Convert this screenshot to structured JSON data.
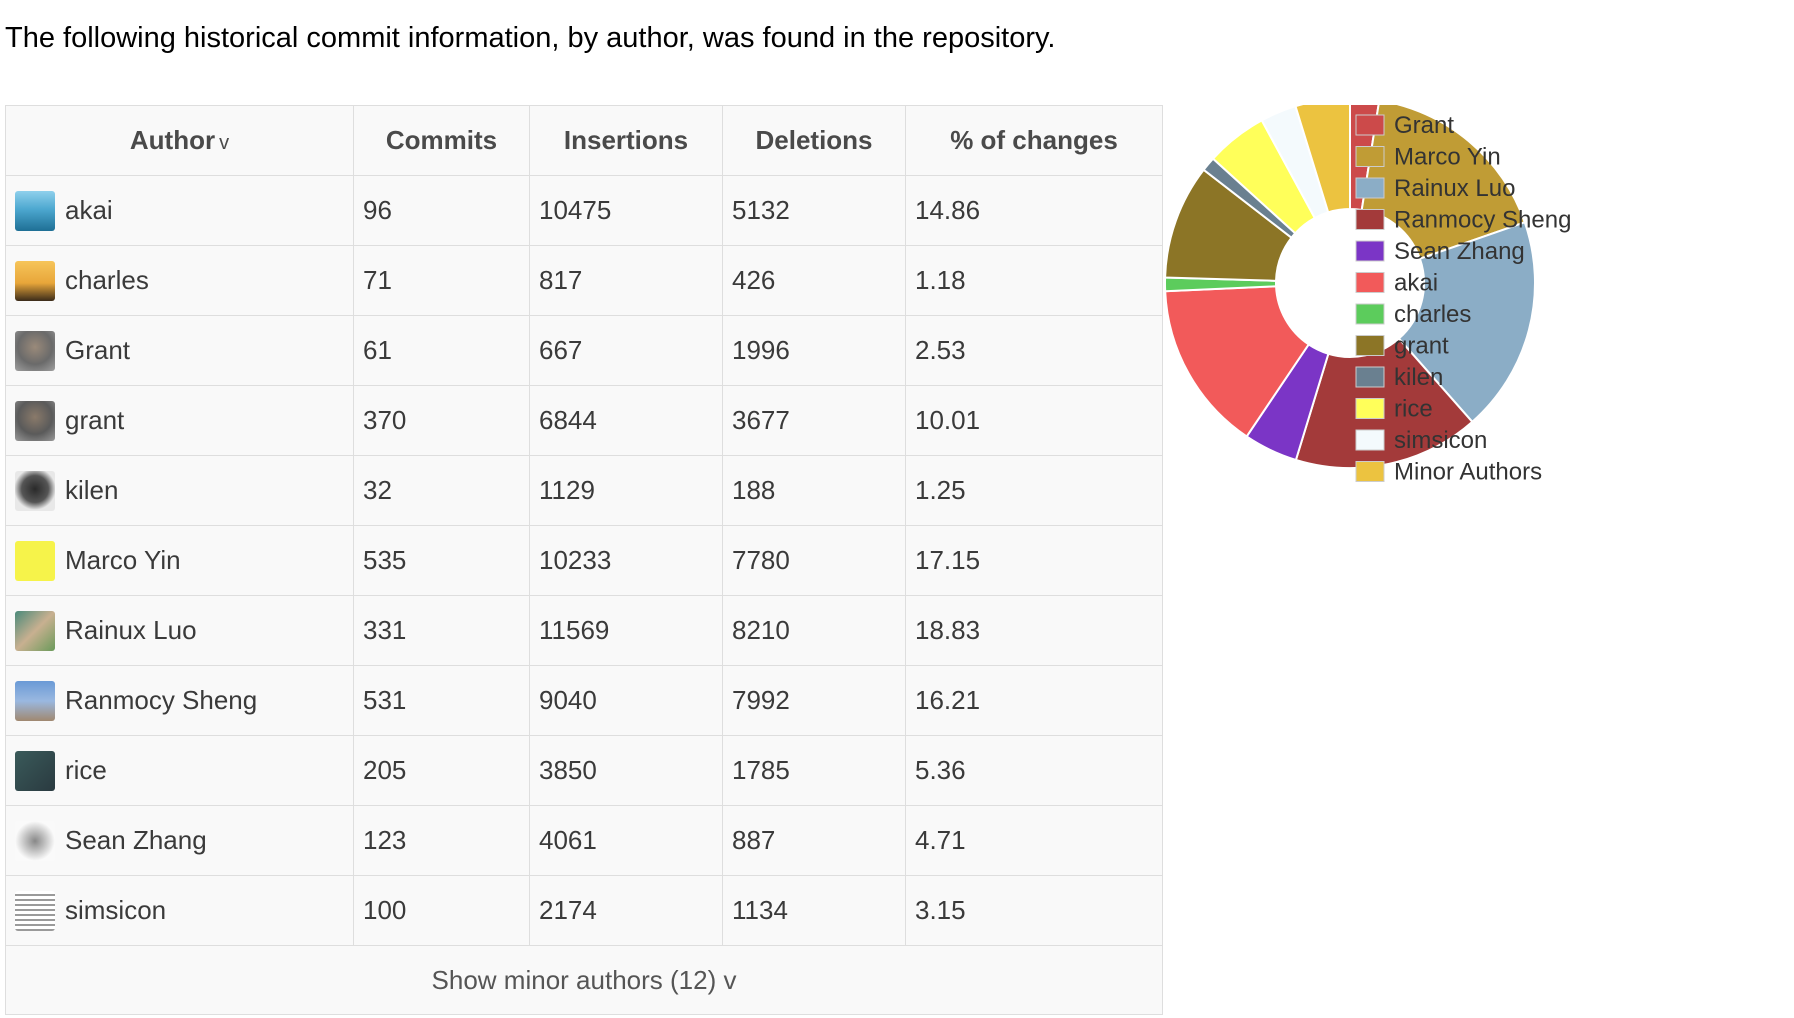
{
  "intro": "The following historical commit information, by author, was found in the repository.",
  "table": {
    "headers": {
      "author": "Author",
      "author_sort_indicator": "v",
      "commits": "Commits",
      "insertions": "Insertions",
      "deletions": "Deletions",
      "percent": "% of changes"
    },
    "rows": [
      {
        "author": "akai",
        "commits": "96",
        "insertions": "10475",
        "deletions": "5132",
        "percent": "14.86"
      },
      {
        "author": "charles",
        "commits": "71",
        "insertions": "817",
        "deletions": "426",
        "percent": "1.18"
      },
      {
        "author": "Grant",
        "commits": "61",
        "insertions": "667",
        "deletions": "1996",
        "percent": "2.53"
      },
      {
        "author": "grant",
        "commits": "370",
        "insertions": "6844",
        "deletions": "3677",
        "percent": "10.01"
      },
      {
        "author": "kilen",
        "commits": "32",
        "insertions": "1129",
        "deletions": "188",
        "percent": "1.25"
      },
      {
        "author": "Marco Yin",
        "commits": "535",
        "insertions": "10233",
        "deletions": "7780",
        "percent": "17.15"
      },
      {
        "author": "Rainux Luo",
        "commits": "331",
        "insertions": "11569",
        "deletions": "8210",
        "percent": "18.83"
      },
      {
        "author": "Ranmocy Sheng",
        "commits": "531",
        "insertions": "9040",
        "deletions": "7992",
        "percent": "16.21"
      },
      {
        "author": "rice",
        "commits": "205",
        "insertions": "3850",
        "deletions": "1785",
        "percent": "5.36"
      },
      {
        "author": "Sean Zhang",
        "commits": "123",
        "insertions": "4061",
        "deletions": "887",
        "percent": "4.71"
      },
      {
        "author": "simsicon",
        "commits": "100",
        "insertions": "2174",
        "deletions": "1134",
        "percent": "3.15"
      }
    ],
    "show_minor": "Show minor authors (12) v"
  },
  "chart_data": {
    "type": "pie",
    "donut": true,
    "legend_position": "right",
    "title": "",
    "categories": [
      "Grant",
      "Marco Yin",
      "Rainux Luo",
      "Ranmocy Sheng",
      "Sean Zhang",
      "akai",
      "charles",
      "grant",
      "kilen",
      "rice",
      "simsicon",
      "Minor Authors"
    ],
    "values": [
      2.53,
      17.15,
      18.83,
      16.21,
      4.71,
      14.86,
      1.18,
      10.01,
      1.25,
      5.36,
      3.15,
      4.76
    ],
    "colors": [
      "#cc4a4a",
      "#c09c35",
      "#8badc6",
      "#a33a3a",
      "#7b35c6",
      "#f25a5a",
      "#5ccc5c",
      "#8c7526",
      "#6a8090",
      "#ffff5a",
      "#f4fafd",
      "#ecc340"
    ]
  }
}
